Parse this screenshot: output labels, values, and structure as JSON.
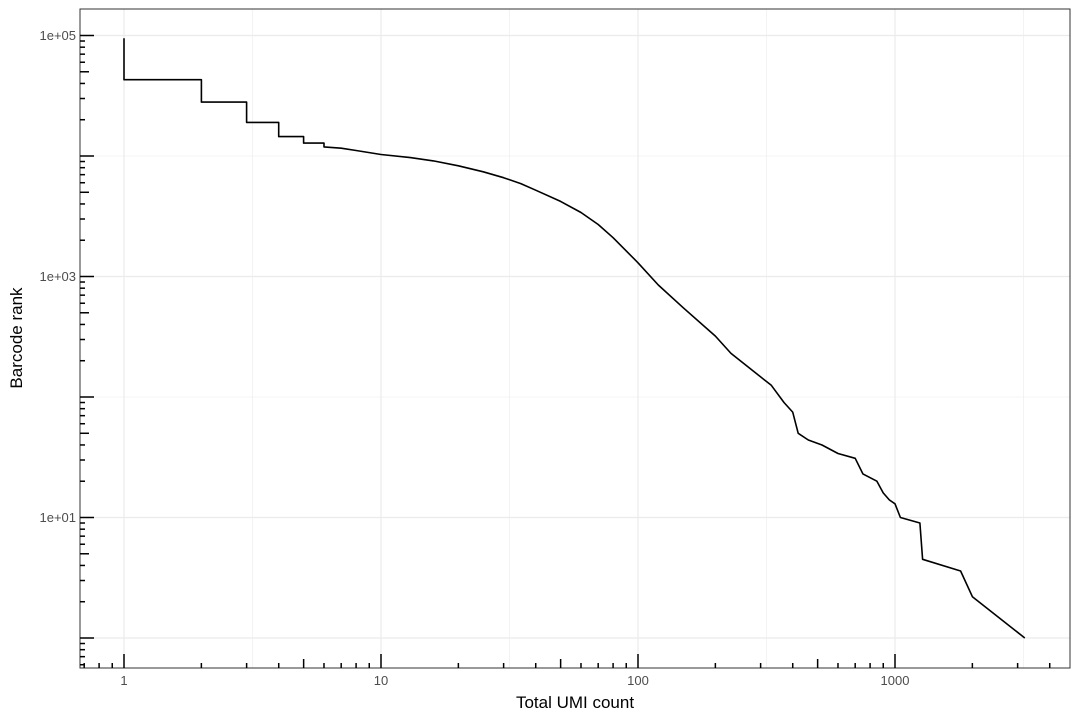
{
  "chart_data": {
    "type": "line",
    "title": "",
    "xlabel": "Total UMI count",
    "ylabel": "Barcode rank",
    "x_scale": "log10",
    "y_scale": "log10",
    "xlim": [
      0.7,
      4500
    ],
    "ylim": [
      0.7,
      140000
    ],
    "grid": true,
    "legend": "none",
    "x_ticks": [
      1,
      10,
      100,
      1000
    ],
    "x_tick_labels": [
      "1",
      "10",
      "100",
      "1000"
    ],
    "y_ticks": [
      10,
      1000,
      100000
    ],
    "y_tick_labels": [
      "1e+01",
      "1e+03",
      "1e+05"
    ],
    "colors": {
      "line": "#000000",
      "grid": "#ebebeb",
      "panel_border": "#333333",
      "tick_label": "#4d4d4d"
    },
    "series": [
      {
        "points": [
          [
            1,
            95000
          ],
          [
            1,
            43000
          ],
          [
            2,
            43000
          ],
          [
            2,
            28000
          ],
          [
            3,
            28000
          ],
          [
            3,
            19000
          ],
          [
            4,
            19000
          ],
          [
            4,
            14500
          ],
          [
            5,
            14500
          ],
          [
            5,
            12800
          ],
          [
            6,
            12800
          ],
          [
            6,
            11900
          ],
          [
            7,
            11600
          ],
          [
            8,
            11100
          ],
          [
            10,
            10300
          ],
          [
            13,
            9700
          ],
          [
            16,
            9100
          ],
          [
            20,
            8300
          ],
          [
            25,
            7400
          ],
          [
            30,
            6600
          ],
          [
            35,
            5900
          ],
          [
            40,
            5200
          ],
          [
            50,
            4200
          ],
          [
            60,
            3400
          ],
          [
            70,
            2700
          ],
          [
            80,
            2100
          ],
          [
            100,
            1300
          ],
          [
            120,
            850
          ],
          [
            150,
            550
          ],
          [
            200,
            320
          ],
          [
            230,
            230
          ],
          [
            280,
            165
          ],
          [
            330,
            125
          ],
          [
            370,
            90
          ],
          [
            400,
            75
          ],
          [
            420,
            50
          ],
          [
            460,
            44
          ],
          [
            520,
            40
          ],
          [
            600,
            34
          ],
          [
            700,
            31
          ],
          [
            750,
            23
          ],
          [
            850,
            20
          ],
          [
            900,
            16
          ],
          [
            950,
            14
          ],
          [
            1000,
            13
          ],
          [
            1050,
            10
          ],
          [
            1250,
            9
          ],
          [
            1280,
            4.5
          ],
          [
            1800,
            3.6
          ],
          [
            2000,
            2.2
          ],
          [
            3200,
            1
          ]
        ]
      }
    ]
  }
}
